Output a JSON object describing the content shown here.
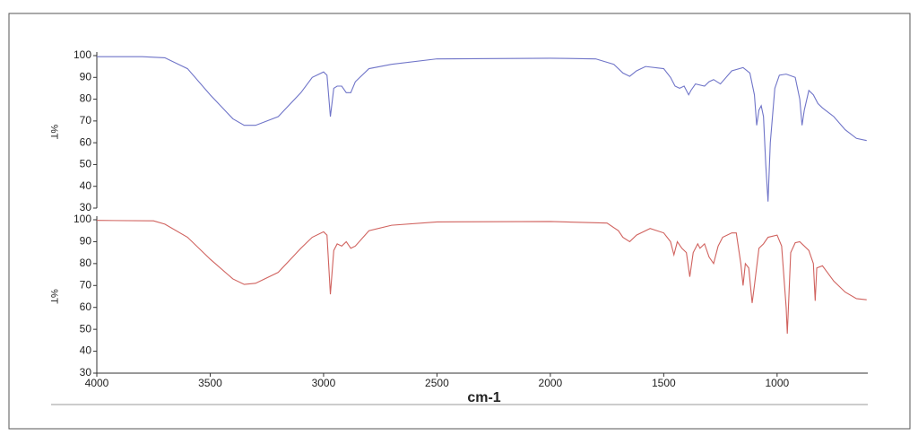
{
  "chart_data": [
    {
      "type": "line",
      "ylabel": "%T",
      "x": [
        4000,
        3800,
        3700,
        3600,
        3500,
        3400,
        3350,
        3300,
        3200,
        3100,
        3050,
        3000,
        2985,
        2970,
        2955,
        2940,
        2920,
        2900,
        2880,
        2860,
        2800,
        2700,
        2500,
        2000,
        1800,
        1720,
        1680,
        1650,
        1620,
        1580,
        1500,
        1470,
        1450,
        1430,
        1410,
        1390,
        1380,
        1360,
        1320,
        1300,
        1280,
        1250,
        1200,
        1150,
        1120,
        1100,
        1090,
        1080,
        1070,
        1060,
        1050,
        1040,
        1030,
        1010,
        990,
        960,
        920,
        900,
        890,
        880,
        860,
        840,
        820,
        800,
        750,
        700,
        650,
        605
      ],
      "values": [
        99.5,
        99.5,
        99,
        94,
        82,
        71,
        68,
        68,
        72,
        83,
        90,
        92.5,
        91,
        72,
        85,
        86,
        86,
        83,
        83,
        88,
        94,
        96,
        98.5,
        98.8,
        98.5,
        96,
        92,
        90.5,
        93,
        95,
        94,
        90,
        86,
        85,
        86,
        82,
        84,
        87,
        86,
        88,
        89,
        87,
        93,
        94.5,
        92,
        82,
        68,
        75,
        77,
        72,
        50,
        33,
        60,
        85,
        91,
        91.5,
        90,
        80,
        68,
        75,
        84,
        82,
        78,
        76,
        72,
        66,
        62,
        61
      ],
      "color": "#6f74c8",
      "xlim": [
        4000,
        600
      ],
      "ylim": [
        30,
        100
      ],
      "yticks": [
        30,
        40,
        50,
        60,
        70,
        80,
        90,
        100
      ]
    },
    {
      "type": "line",
      "ylabel": "%T",
      "xlabel": "cm-1",
      "x": [
        4000,
        3750,
        3700,
        3600,
        3500,
        3400,
        3350,
        3300,
        3200,
        3100,
        3050,
        3000,
        2985,
        2970,
        2955,
        2940,
        2920,
        2900,
        2880,
        2860,
        2800,
        2700,
        2500,
        2000,
        1750,
        1700,
        1680,
        1650,
        1620,
        1560,
        1500,
        1470,
        1455,
        1440,
        1420,
        1400,
        1385,
        1370,
        1350,
        1340,
        1320,
        1300,
        1280,
        1260,
        1240,
        1200,
        1180,
        1160,
        1150,
        1140,
        1125,
        1110,
        1100,
        1080,
        1060,
        1040,
        1000,
        980,
        960,
        955,
        950,
        940,
        920,
        900,
        860,
        840,
        832,
        825,
        800,
        750,
        700,
        650,
        605
      ],
      "values": [
        99.7,
        99.5,
        98,
        92,
        82,
        73,
        70.5,
        71,
        76,
        87,
        92,
        94.5,
        93,
        66,
        86,
        89,
        88,
        90,
        87,
        88,
        95,
        97.5,
        99,
        99.2,
        98.5,
        95,
        92,
        90,
        93,
        96,
        94,
        90,
        84,
        90,
        87,
        85,
        74,
        85,
        89,
        87,
        89,
        83,
        80,
        88,
        92,
        94,
        94,
        80,
        70,
        80,
        78,
        62,
        70,
        87,
        89,
        92,
        93,
        88,
        60,
        48,
        60,
        85,
        89.5,
        90,
        86,
        80,
        63,
        78,
        79,
        72,
        67,
        64,
        63.5
      ],
      "color": "#d0625e",
      "xlim": [
        4000,
        600
      ],
      "xticks": [
        4000,
        3500,
        3000,
        2500,
        2000,
        1500,
        1000
      ],
      "ylim": [
        30,
        100
      ],
      "yticks": [
        30,
        40,
        50,
        60,
        70,
        80,
        90,
        100
      ]
    }
  ]
}
